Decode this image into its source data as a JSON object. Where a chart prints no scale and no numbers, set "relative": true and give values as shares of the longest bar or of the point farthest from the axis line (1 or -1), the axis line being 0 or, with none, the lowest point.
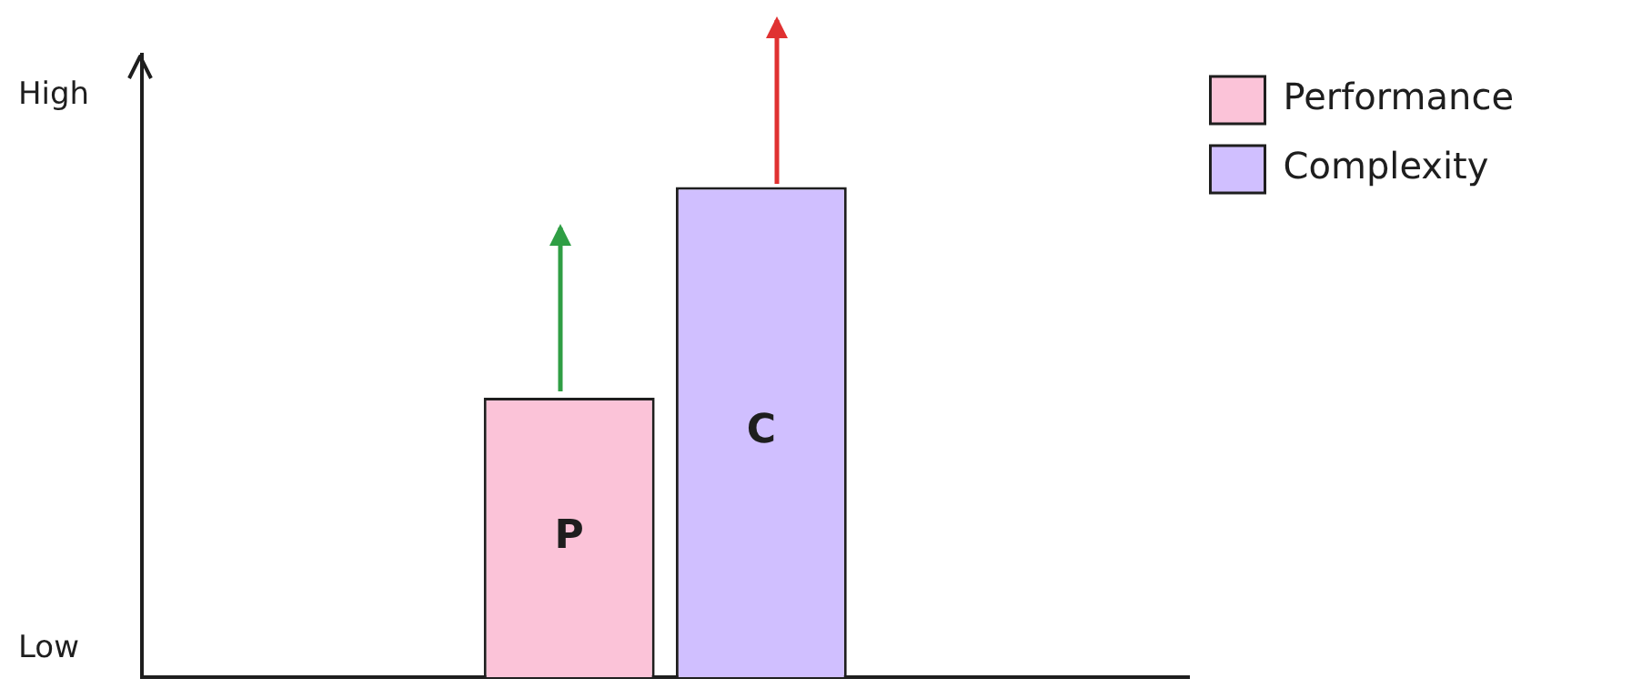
{
  "chart_data": {
    "type": "bar",
    "relative": true,
    "categories": [
      null
    ],
    "series": [
      {
        "name": "Performance",
        "color": "#fbc3d8",
        "values": [
          0.57
        ]
      },
      {
        "name": "Complexity",
        "color": "#d0bfff",
        "values": [
          1
        ]
      }
    ],
    "annotations": [
      "High",
      "Low",
      "P",
      "C"
    ],
    "legend": "top right",
    "grid": false
  }
}
